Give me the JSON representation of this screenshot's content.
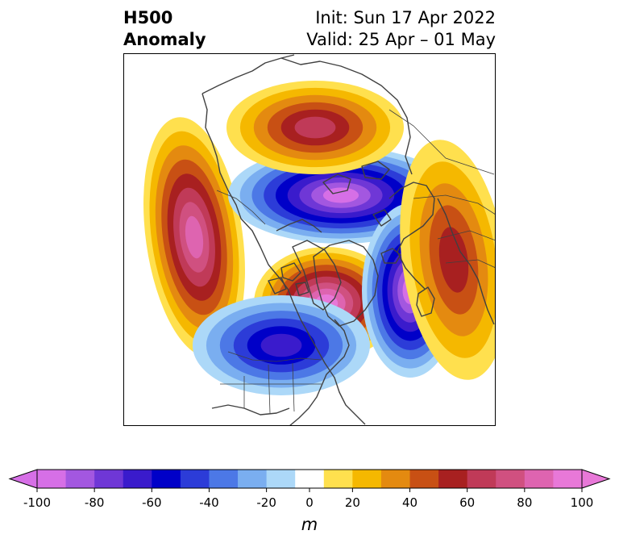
{
  "title": {
    "left_line1": "H500",
    "left_line2": "Anomaly",
    "right_line1": "Init: Sun 17 Apr 2022",
    "right_line2": "Valid: 25 Apr – 01 May"
  },
  "colorbar": {
    "unit": "m",
    "levels": [
      -100,
      -90,
      -80,
      -70,
      -60,
      -50,
      -40,
      -30,
      -20,
      -10,
      10,
      20,
      30,
      40,
      50,
      60,
      70,
      80,
      90,
      100
    ],
    "tick_values": [
      -100,
      -80,
      -60,
      -40,
      -20,
      0,
      20,
      40,
      60,
      80,
      100
    ],
    "tick_labels": [
      "-100",
      "-80",
      "-60",
      "-40",
      "-20",
      "0",
      "20",
      "40",
      "60",
      "80",
      "100"
    ],
    "colors": [
      "#d66fe6",
      "#a357e0",
      "#6f37d6",
      "#3a1bcc",
      "#0000c8",
      "#2c3cd8",
      "#4c78e6",
      "#7aaef0",
      "#acd8f8",
      "#ffffff",
      "#ffe04e",
      "#f5b800",
      "#e48a10",
      "#c85014",
      "#a82020",
      "#c03a58",
      "#d05080",
      "#de64b0",
      "#e878d8"
    ],
    "under_color": "#d66fe6",
    "over_color": "#e878d8"
  },
  "anomalies": [
    {
      "name": "ridge-gulf-of-alaska",
      "sign": "positive",
      "peak": 80
    },
    {
      "name": "ridge-greenland",
      "sign": "positive",
      "peak": 90
    },
    {
      "name": "trough-central-us",
      "sign": "negative",
      "peak": -60
    },
    {
      "name": "trough-arctic",
      "sign": "negative",
      "peak": -90
    },
    {
      "name": "trough-north-atlantic",
      "sign": "negative",
      "peak": -90
    },
    {
      "name": "ridge-siberia",
      "sign": "positive",
      "peak": 60
    },
    {
      "name": "ridge-europe",
      "sign": "positive",
      "peak": 50
    }
  ]
}
